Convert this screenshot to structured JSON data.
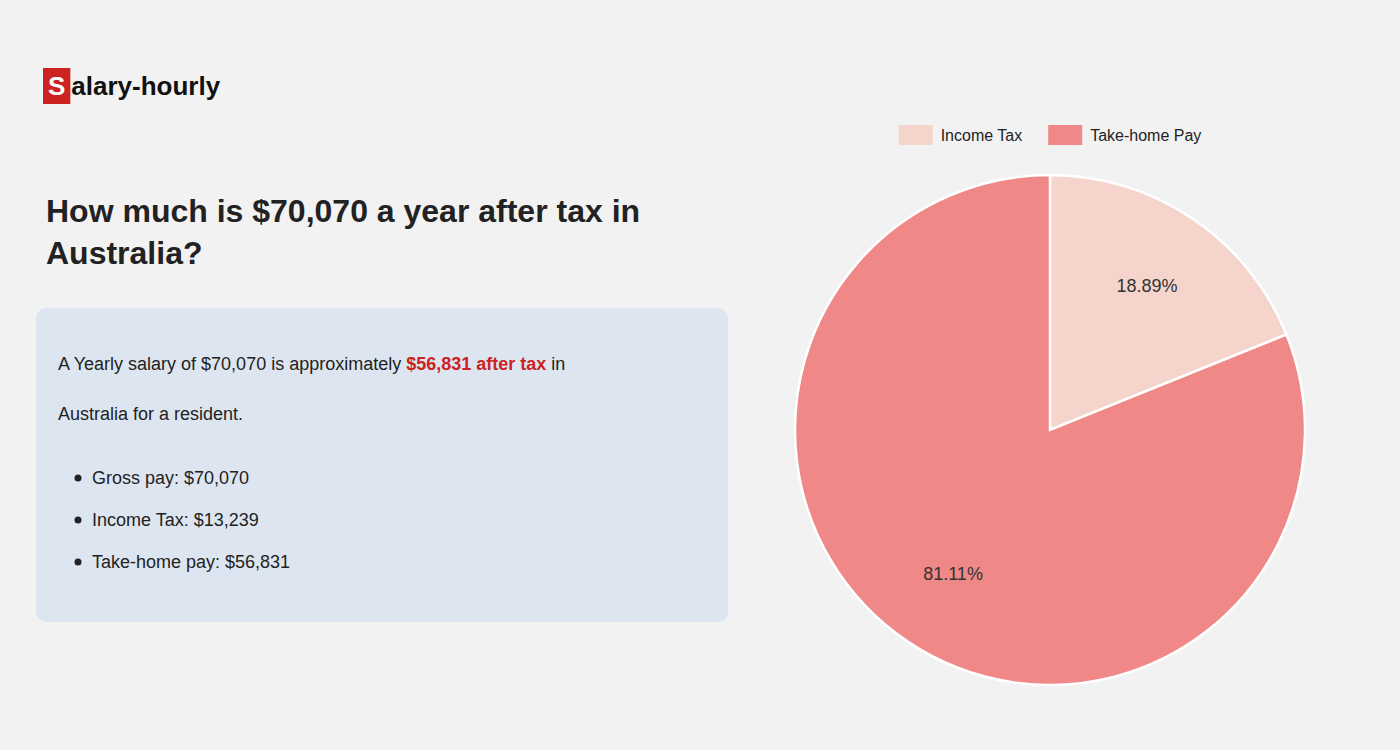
{
  "chart_data": {
    "type": "pie",
    "title": "How much is $70,070 a year after tax in Australia?",
    "annotations": [
      "Salary-hourly",
      "A Yearly salary of $70,070 is approximately",
      "$56,831 after tax",
      "in",
      "Australia for a resident.",
      "Gross pay: $70,070",
      "Income Tax: $13,239",
      "Take-home pay: $56,831"
    ],
    "categories": [
      "Income Tax",
      "Take-home Pay"
    ],
    "values": [
      18.89,
      81.11
    ],
    "value_labels": [
      "18.89%",
      "81.11%"
    ],
    "colors": [
      "#f5d5cb",
      "#f08888"
    ],
    "data_labels": true,
    "legend": "top"
  }
}
